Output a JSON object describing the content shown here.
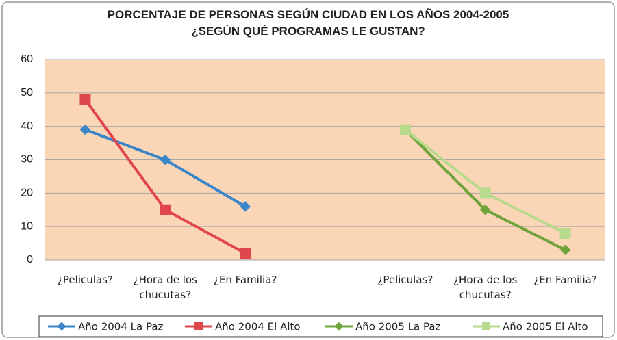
{
  "chart_data": {
    "type": "line",
    "title": "PORCENTAJE DE PERSONAS SEGÚN CIUDAD EN LOS AÑOS 2004-2005 ¿SEGÚN QUÉ PROGRAMAS LE GUSTAN?",
    "categories": [
      "¿Peliculas?",
      "¿Hora de los chucutas?",
      "¿En Familia?",
      null,
      "¿Peliculas?",
      "¿Hora de los chucutas?",
      "¿En Familia?"
    ],
    "series": [
      {
        "name": "Año 2004 La Paz",
        "color": "#3a86c8",
        "marker": "diamond",
        "values": [
          39,
          30,
          16,
          null,
          null,
          null,
          null
        ]
      },
      {
        "name": "Año 2004 El Alto",
        "color": "#e0474c",
        "marker": "square",
        "values": [
          48,
          15,
          2,
          null,
          null,
          null,
          null
        ]
      },
      {
        "name": "Año 2005 La Paz",
        "color": "#6fa33b",
        "marker": "diamond",
        "values": [
          null,
          null,
          null,
          null,
          39,
          15,
          3
        ]
      },
      {
        "name": "Año 2005 El Alto",
        "color": "#b8da8c",
        "marker": "square",
        "values": [
          null,
          null,
          null,
          null,
          39,
          20,
          8
        ]
      }
    ],
    "ylim": [
      0,
      60
    ],
    "yticks": [
      0,
      10,
      20,
      30,
      40,
      50,
      60
    ],
    "grid": true,
    "legend": "bottom"
  }
}
